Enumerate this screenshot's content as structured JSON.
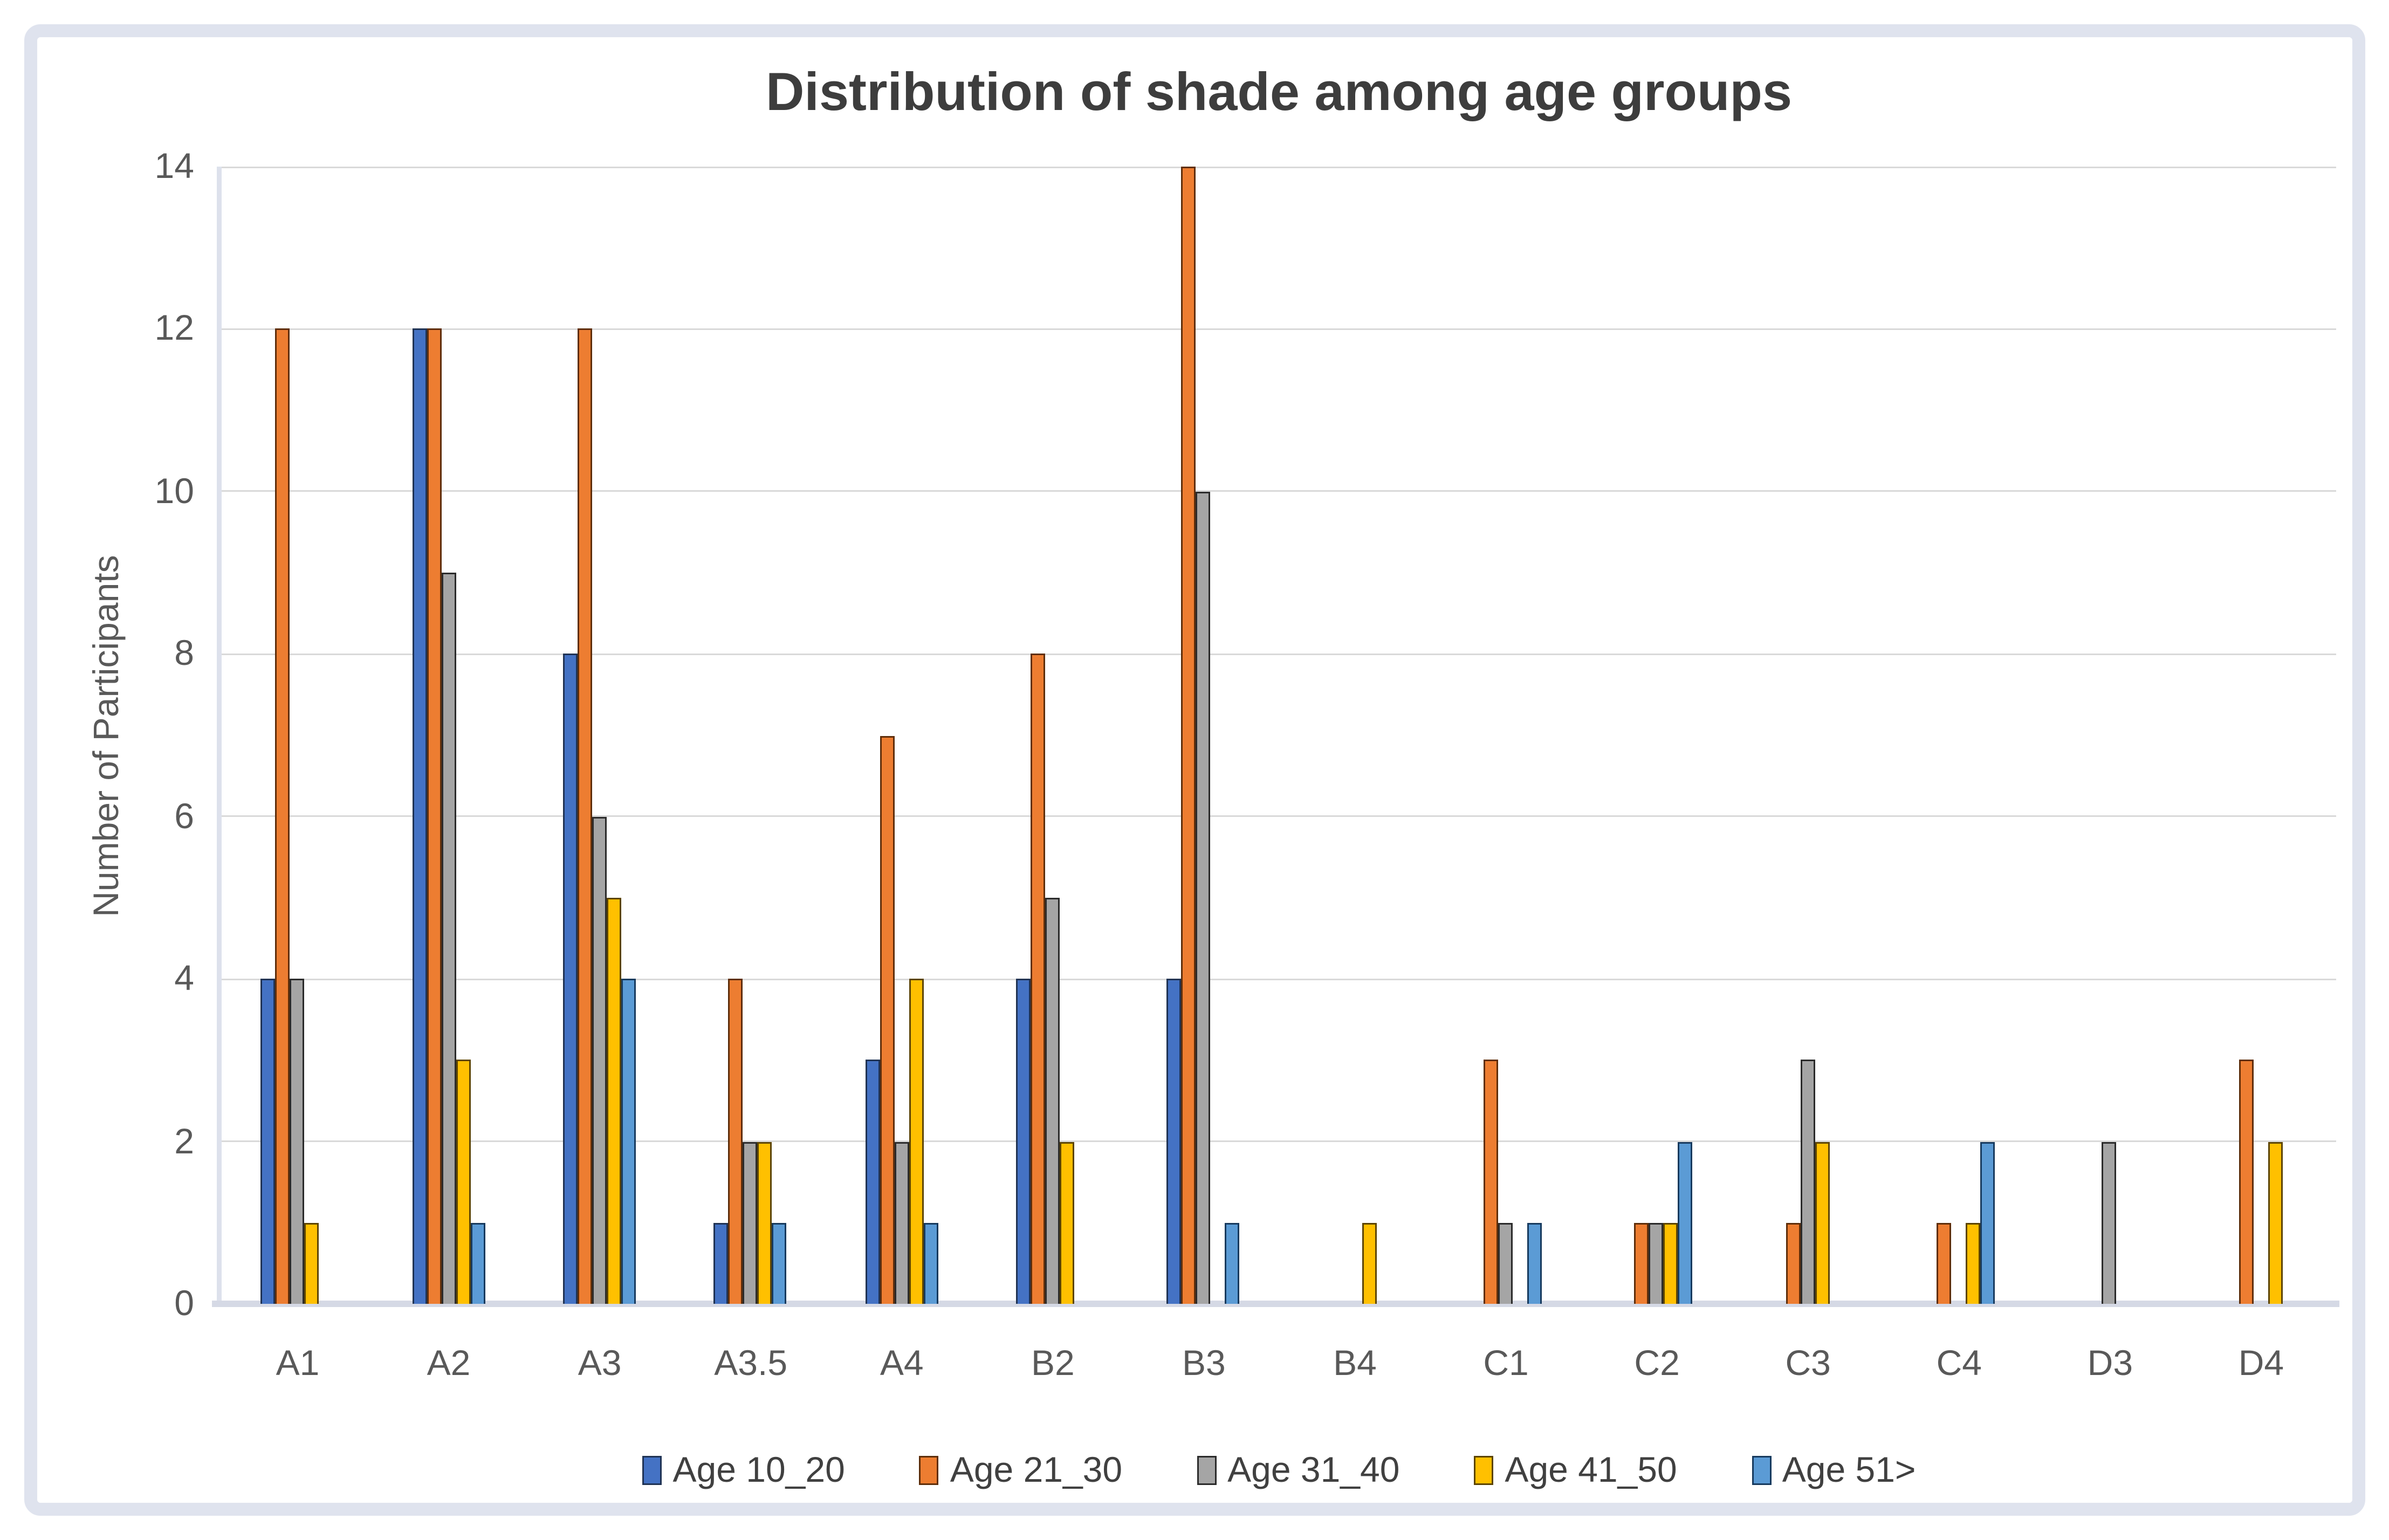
{
  "window": {
    "title": "Distribution of shade among age groups"
  },
  "chart_data": {
    "type": "bar",
    "title": "Distribution of shade among age groups",
    "xlabel": "",
    "ylabel": "Number of Participants",
    "categories": [
      "A1",
      "A2",
      "A3",
      "A3.5",
      "A4",
      "B2",
      "B3",
      "B4",
      "C1",
      "C2",
      "C3",
      "C4",
      "D3",
      "D4"
    ],
    "series": [
      {
        "name": "Age 10_20",
        "color": "#4472C4",
        "border": "#203354",
        "values": [
          4,
          12,
          8,
          1,
          3,
          4,
          4,
          0,
          0,
          0,
          0,
          0,
          0,
          0
        ]
      },
      {
        "name": "Age 21_30",
        "color": "#ED7D31",
        "border": "#5f2e0a",
        "values": [
          12,
          12,
          12,
          4,
          7,
          8,
          14,
          0,
          3,
          1,
          1,
          1,
          0,
          3
        ]
      },
      {
        "name": "Age 31_40",
        "color": "#A5A5A5",
        "border": "#2b2b2b",
        "values": [
          4,
          9,
          6,
          2,
          2,
          5,
          10,
          0,
          1,
          1,
          3,
          0,
          2,
          0
        ]
      },
      {
        "name": "Age 41_50",
        "color": "#FFC000",
        "border": "#5c4400",
        "values": [
          1,
          3,
          5,
          2,
          4,
          2,
          0,
          1,
          0,
          1,
          2,
          1,
          0,
          2
        ]
      },
      {
        "name": "Age 51>",
        "color": "#5B9BD5",
        "border": "#173a5e",
        "values": [
          0,
          1,
          4,
          1,
          1,
          0,
          1,
          0,
          1,
          2,
          0,
          2,
          0,
          0
        ]
      }
    ],
    "ylim": [
      0,
      14
    ],
    "yticks": [
      0,
      2,
      4,
      6,
      8,
      10,
      12,
      14
    ],
    "grid": true,
    "legend_position": "bottom"
  },
  "colors": {
    "background": "#ffffff",
    "frame_border": "#dfe3ee",
    "gridline": "#d9d9d9",
    "baseline": "#d5d9e5",
    "title_text": "#3d3d3d",
    "tick_text": "#595959",
    "legend_text": "#404040"
  }
}
